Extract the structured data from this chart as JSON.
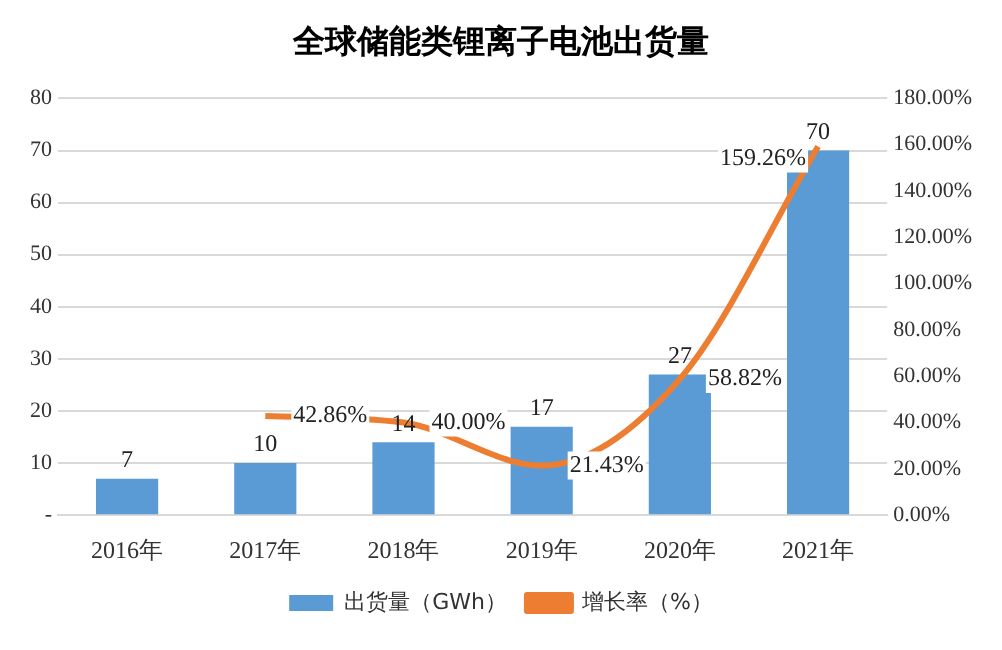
{
  "chart_data": {
    "type": "bar",
    "title": "全球储能类锂离子电池出货量",
    "categories": [
      "2016年",
      "2017年",
      "2018年",
      "2019年",
      "2020年",
      "2021年"
    ],
    "series": [
      {
        "name": "出货量（GWh）",
        "color": "#5b9bd5",
        "values": [
          7,
          10,
          14,
          17,
          27,
          70
        ],
        "value_labels": [
          "7",
          "10",
          "14",
          "17",
          "27",
          "70"
        ]
      },
      {
        "name": "增长率（%）",
        "type": "line",
        "axis": "y2",
        "color": "#ed7d31",
        "values": [
          null,
          42.86,
          40.0,
          21.43,
          58.82,
          159.26
        ],
        "value_labels": [
          null,
          "42.86%",
          "40.00%",
          "21.43%",
          "58.82%",
          "159.26%"
        ]
      }
    ],
    "ylim": [
      0,
      80
    ],
    "yticks": [
      {
        "value": 0,
        "label": "-"
      },
      10,
      20,
      30,
      40,
      50,
      60,
      70,
      80
    ],
    "y2lim": [
      0,
      180
    ],
    "y2ticks": [
      {
        "value": 0,
        "label": "0.00%"
      },
      {
        "value": 20,
        "label": "20.00%"
      },
      {
        "value": 40,
        "label": "40.00%"
      },
      {
        "value": 60,
        "label": "60.00%"
      },
      {
        "value": 80,
        "label": "80.00%"
      },
      {
        "value": 100,
        "label": "100.00%"
      },
      {
        "value": 120,
        "label": "120.00%"
      },
      {
        "value": 140,
        "label": "140.00%"
      },
      {
        "value": 160,
        "label": "160.00%"
      },
      {
        "value": 180,
        "label": "180.00%"
      }
    ],
    "grid": "y",
    "legend": "bottom",
    "marker": "none",
    "line_style": "solid"
  }
}
